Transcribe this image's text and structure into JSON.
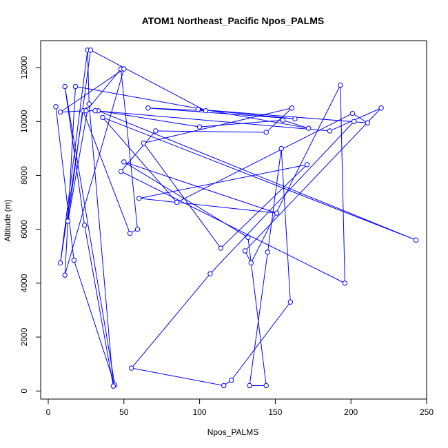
{
  "chart_data": {
    "type": "line",
    "title": "ATOM1 Northeast_Pacific Npos_PALMS",
    "xlabel": "Npos_PALMS",
    "ylabel": "Altitude (m)",
    "xlim": [
      -5,
      250
    ],
    "ylim": [
      -300,
      13000
    ],
    "x_ticks": [
      0,
      50,
      100,
      150,
      200,
      250
    ],
    "y_ticks": [
      0,
      2000,
      4000,
      6000,
      8000,
      10000,
      12000
    ],
    "x_tick_labels": [
      "0",
      "50",
      "100",
      "150",
      "200",
      "250"
    ],
    "y_tick_labels": [
      "0",
      "2000",
      "4000",
      "6000",
      "8000",
      "10000",
      "12000"
    ],
    "color": "#0000ff",
    "markers": "open-circle",
    "series": [
      {
        "x": [
          5,
          17,
          44,
          11,
          24,
          43,
          27,
          26,
          8,
          23,
          54,
          59,
          48,
          26,
          13,
          28,
          104,
          66,
          163,
          99,
          211,
          201,
          85,
          36,
          243,
          33,
          100,
          155,
          172,
          18,
          11,
          50,
          8,
          25,
          31,
          186,
          220,
          130,
          134,
          193,
          196,
          48,
          71,
          144,
          161,
          63,
          114,
          171,
          60,
          151,
          50,
          132,
          144,
          133,
          145,
          154,
          160,
          121,
          116,
          55,
          107,
          202
        ],
        "y": [
          10550,
          4850,
          220,
          11300,
          6150,
          180,
          10650,
          12650,
          4750,
          10400,
          5850,
          6000,
          11950,
          10450,
          6300,
          12650,
          10400,
          10500,
          10100,
          10450,
          9950,
          10300,
          7000,
          10150,
          5600,
          10400,
          9800,
          10050,
          9750,
          11300,
          4300,
          11950,
          10350,
          10400,
          10400,
          9650,
          10500,
          5200,
          4750,
          11350,
          4000,
          8150,
          9650,
          9600,
          10500,
          9200,
          5300,
          8400,
          7150,
          6600,
          8500,
          5700,
          200,
          200,
          5150,
          9000,
          3300,
          400,
          200,
          850,
          4350,
          10000
        ]
      }
    ]
  }
}
